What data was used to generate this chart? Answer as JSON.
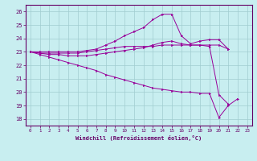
{
  "title": "",
  "xlabel": "Windchill (Refroidissement éolien,°C)",
  "background_color": "#c8eef0",
  "grid_color": "#a0ccd0",
  "line_color": "#990099",
  "x_hours": [
    0,
    1,
    2,
    3,
    4,
    5,
    6,
    7,
    8,
    9,
    10,
    11,
    12,
    13,
    14,
    15,
    16,
    17,
    18,
    19,
    20,
    21,
    22,
    23
  ],
  "ylim": [
    17.5,
    26.5
  ],
  "yticks": [
    18,
    19,
    20,
    21,
    22,
    23,
    24,
    25,
    26
  ],
  "xlim": [
    -0.5,
    23.5
  ],
  "line1_x": [
    0,
    1,
    2,
    3,
    4,
    5,
    6,
    7,
    8,
    9,
    10,
    11,
    12,
    13,
    14,
    15,
    16,
    17,
    18,
    19,
    20,
    21
  ],
  "line1_y": [
    23.0,
    22.9,
    22.9,
    22.9,
    22.9,
    22.9,
    23.0,
    23.1,
    23.2,
    23.3,
    23.4,
    23.4,
    23.4,
    23.4,
    23.5,
    23.5,
    23.5,
    23.5,
    23.5,
    23.5,
    23.5,
    23.2
  ],
  "line2_x": [
    0,
    1,
    2,
    3,
    4,
    5,
    6,
    7,
    8,
    9,
    10,
    11,
    12,
    13,
    14,
    15,
    16,
    17,
    18,
    19,
    20,
    21
  ],
  "line2_y": [
    23.0,
    22.9,
    22.8,
    22.8,
    22.7,
    22.7,
    22.7,
    22.8,
    22.9,
    23.0,
    23.1,
    23.2,
    23.3,
    23.5,
    23.7,
    23.8,
    23.6,
    23.5,
    23.5,
    23.4,
    19.8,
    19.1
  ],
  "line3_x": [
    0,
    1,
    2,
    3,
    4,
    5,
    6,
    7,
    8,
    9,
    10,
    11,
    12,
    13,
    14,
    15,
    16,
    17,
    18,
    19,
    20,
    21,
    22
  ],
  "line3_y": [
    23.0,
    22.8,
    22.6,
    22.4,
    22.2,
    22.0,
    21.8,
    21.6,
    21.3,
    21.1,
    20.9,
    20.7,
    20.5,
    20.3,
    20.2,
    20.1,
    20.0,
    20.0,
    19.9,
    19.9,
    18.1,
    19.0,
    19.5
  ],
  "line4_x": [
    0,
    1,
    2,
    3,
    4,
    5,
    6,
    7,
    8,
    9,
    10,
    11,
    12,
    13,
    14,
    15,
    16,
    17,
    18,
    19,
    20,
    21
  ],
  "line4_y": [
    23.0,
    23.0,
    23.0,
    23.0,
    23.0,
    23.0,
    23.1,
    23.2,
    23.5,
    23.8,
    24.2,
    24.5,
    24.8,
    25.4,
    25.8,
    25.8,
    24.2,
    23.6,
    23.8,
    23.9,
    23.9,
    23.2
  ]
}
